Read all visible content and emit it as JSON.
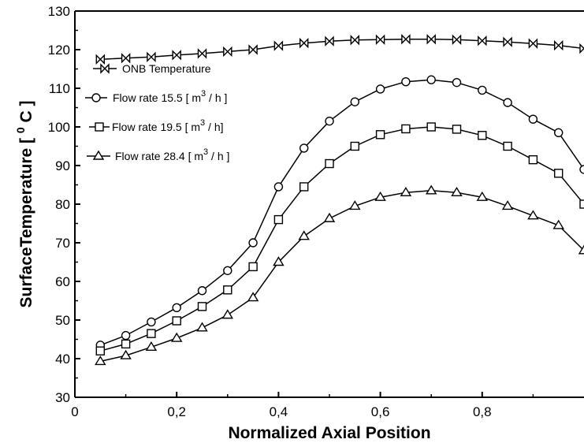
{
  "chart_data": {
    "type": "line",
    "xlabel": "Normalized Axial Position",
    "ylabel": "SurfaceTemperature [ 0 C ]",
    "ylabel_parts": {
      "main": "SurfaceTemperature [ ",
      "sup": "0",
      "end": " C ]"
    },
    "xlim": [
      0,
      1.0
    ],
    "ylim": [
      30,
      130
    ],
    "x_ticks": [
      0,
      0.2,
      0.4,
      0.6,
      0.8
    ],
    "x_tick_labels": [
      "0",
      "0,2",
      "0,4",
      "0,6",
      "0,8"
    ],
    "y_ticks": [
      30,
      40,
      50,
      60,
      70,
      80,
      90,
      100,
      110,
      120,
      130
    ],
    "y_tick_labels": [
      "30",
      "40",
      "50",
      "60",
      "70",
      "80",
      "90",
      "100",
      "110",
      "120",
      "130"
    ],
    "grid": false,
    "legend_position": "left",
    "series": [
      {
        "name": "ONB Temperature",
        "marker": "bowtie",
        "legend_parts": {
          "main": "ONB Temperature",
          "sup": "",
          "end": ""
        },
        "x": [
          0.05,
          0.1,
          0.15,
          0.2,
          0.25,
          0.3,
          0.35,
          0.4,
          0.45,
          0.5,
          0.55,
          0.6,
          0.65,
          0.7,
          0.75,
          0.8,
          0.85,
          0.9,
          0.95,
          1.0
        ],
        "y": [
          117.5,
          117.8,
          118.1,
          118.6,
          119.0,
          119.5,
          120.0,
          121.0,
          121.7,
          122.2,
          122.5,
          122.6,
          122.7,
          122.7,
          122.6,
          122.3,
          122.0,
          121.6,
          121.1,
          120.3
        ]
      },
      {
        "name": "Flow rate 15.5 [ m 3 / h ]",
        "marker": "circle",
        "legend_parts": {
          "main": "Flow rate 15.5 [ m",
          "sup": "3",
          "end": " / h ]"
        },
        "x": [
          0.05,
          0.1,
          0.15,
          0.2,
          0.25,
          0.3,
          0.35,
          0.4,
          0.45,
          0.5,
          0.55,
          0.6,
          0.65,
          0.7,
          0.75,
          0.8,
          0.85,
          0.9,
          0.95,
          1.0
        ],
        "y": [
          43.5,
          46.0,
          49.5,
          53.2,
          57.6,
          62.8,
          70.0,
          84.5,
          94.5,
          101.5,
          106.5,
          109.8,
          111.7,
          112.2,
          111.5,
          109.5,
          106.3,
          102.0,
          98.5,
          89.0
        ]
      },
      {
        "name": "Flow rate 19.5 [ m 3 / h]",
        "marker": "square",
        "legend_parts": {
          "main": "Flow rate 19.5 [ m",
          "sup": "3",
          "end": " / h]"
        },
        "x": [
          0.05,
          0.1,
          0.15,
          0.2,
          0.25,
          0.3,
          0.35,
          0.4,
          0.45,
          0.5,
          0.55,
          0.6,
          0.65,
          0.7,
          0.75,
          0.8,
          0.85,
          0.9,
          0.95,
          1.0
        ],
        "y": [
          42.0,
          43.8,
          46.5,
          49.8,
          53.5,
          57.8,
          63.8,
          76.0,
          84.5,
          90.5,
          95.0,
          98.0,
          99.5,
          100.0,
          99.4,
          97.8,
          95.0,
          91.5,
          88.0,
          80.0
        ]
      },
      {
        "name": "Flow rate 28.4 [ m 3 / h ]",
        "marker": "triangle",
        "legend_parts": {
          "main": "Flow rate 28.4 [ m",
          "sup": "3",
          "end": " / h ]"
        },
        "x": [
          0.05,
          0.1,
          0.15,
          0.2,
          0.25,
          0.3,
          0.35,
          0.4,
          0.45,
          0.5,
          0.55,
          0.6,
          0.65,
          0.7,
          0.75,
          0.8,
          0.85,
          0.9,
          0.95,
          1.0
        ],
        "y": [
          39.3,
          40.8,
          43.0,
          45.3,
          48.0,
          51.3,
          55.8,
          65.0,
          71.7,
          76.3,
          79.5,
          81.8,
          83.0,
          83.5,
          83.0,
          81.8,
          79.5,
          77.0,
          74.5,
          68.0
        ]
      }
    ]
  }
}
